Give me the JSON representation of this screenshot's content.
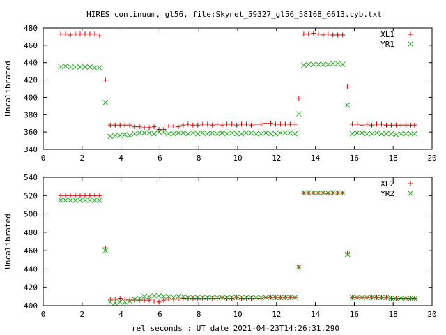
{
  "title": "HIRES continuum, gl56, file:Skynet_59327_gl56_58168_6613.cyb.txt",
  "colors": {
    "series1": "#cc0000",
    "series2": "#22aa22",
    "axes": "#000000"
  },
  "chart_data": [
    {
      "type": "scatter",
      "ylabel": "Uncalibrated",
      "xlabel": "",
      "xlim": [
        0,
        20
      ],
      "ylim": [
        340,
        480
      ],
      "xticks": [
        0,
        2,
        4,
        6,
        8,
        10,
        12,
        14,
        16,
        18,
        20
      ],
      "yticks": [
        340,
        360,
        380,
        400,
        420,
        440,
        460,
        480
      ],
      "grid": false,
      "legend_position": "top-right",
      "series": [
        {
          "name": "XL1",
          "marker": "plus",
          "x": [
            0.9,
            1.15,
            1.4,
            1.65,
            1.9,
            2.15,
            2.4,
            2.65,
            2.9,
            3.2,
            3.45,
            3.7,
            3.95,
            4.2,
            4.45,
            4.7,
            4.95,
            5.2,
            5.45,
            5.7,
            5.95,
            6.2,
            6.45,
            6.7,
            6.95,
            7.2,
            7.45,
            7.7,
            7.95,
            8.2,
            8.45,
            8.7,
            8.95,
            9.2,
            9.45,
            9.7,
            9.95,
            10.2,
            10.45,
            10.7,
            10.95,
            11.2,
            11.45,
            11.7,
            11.95,
            12.2,
            12.45,
            12.7,
            12.95,
            13.15,
            13.4,
            13.65,
            13.9,
            14.15,
            14.4,
            14.65,
            14.9,
            15.15,
            15.4,
            15.65,
            15.9,
            16.15,
            16.4,
            16.65,
            16.9,
            17.15,
            17.4,
            17.65,
            17.9,
            18.15,
            18.4,
            18.65,
            18.9,
            19.1
          ],
          "y": [
            473,
            473,
            472,
            473,
            473,
            473,
            473,
            473,
            471,
            420,
            368,
            368,
            368,
            368,
            368,
            366,
            366,
            365,
            365,
            366,
            363,
            363,
            367,
            367,
            366,
            368,
            369,
            368,
            368,
            369,
            369,
            368,
            369,
            368,
            369,
            369,
            368,
            369,
            369,
            368,
            369,
            369,
            370,
            370,
            369,
            369,
            369,
            369,
            369,
            399,
            473,
            473,
            474,
            473,
            472,
            473,
            472,
            472,
            472,
            412,
            369,
            369,
            368,
            369,
            368,
            369,
            369,
            368,
            368,
            368,
            368,
            368,
            368,
            368
          ]
        },
        {
          "name": "YR1",
          "marker": "cross",
          "x": [
            0.9,
            1.15,
            1.4,
            1.65,
            1.9,
            2.15,
            2.4,
            2.65,
            2.9,
            3.2,
            3.45,
            3.7,
            3.95,
            4.2,
            4.45,
            4.7,
            4.95,
            5.2,
            5.45,
            5.7,
            5.95,
            6.2,
            6.45,
            6.7,
            6.95,
            7.2,
            7.45,
            7.7,
            7.95,
            8.2,
            8.45,
            8.7,
            8.95,
            9.2,
            9.45,
            9.7,
            9.95,
            10.2,
            10.45,
            10.7,
            10.95,
            11.2,
            11.45,
            11.7,
            11.95,
            12.2,
            12.45,
            12.7,
            12.95,
            13.15,
            13.4,
            13.65,
            13.9,
            14.15,
            14.4,
            14.65,
            14.9,
            15.15,
            15.4,
            15.65,
            15.9,
            16.15,
            16.4,
            16.65,
            16.9,
            17.15,
            17.4,
            17.65,
            17.9,
            18.15,
            18.4,
            18.65,
            18.9,
            19.1
          ],
          "y": [
            435,
            436,
            435,
            435,
            435,
            435,
            435,
            434,
            434,
            394,
            355,
            356,
            356,
            357,
            356,
            358,
            359,
            359,
            359,
            358,
            360,
            360,
            358,
            358,
            359,
            359,
            358,
            359,
            358,
            359,
            358,
            359,
            358,
            359,
            358,
            359,
            358,
            358,
            359,
            359,
            358,
            358,
            359,
            358,
            358,
            359,
            359,
            359,
            358,
            381,
            437,
            438,
            438,
            438,
            438,
            438,
            439,
            439,
            438,
            391,
            358,
            359,
            359,
            358,
            358,
            359,
            358,
            358,
            358,
            357,
            358,
            358,
            358,
            358
          ]
        }
      ]
    },
    {
      "type": "scatter",
      "ylabel": "Uncalibrated",
      "xlabel": "rel seconds : UT date 2021-04-23T14:26:31.290",
      "xlim": [
        0,
        20
      ],
      "ylim": [
        400,
        540
      ],
      "xticks": [
        0,
        2,
        4,
        6,
        8,
        10,
        12,
        14,
        16,
        18,
        20
      ],
      "yticks": [
        400,
        420,
        440,
        460,
        480,
        500,
        520,
        540
      ],
      "grid": false,
      "legend_position": "top-right",
      "series": [
        {
          "name": "XL2",
          "marker": "plus",
          "x": [
            0.9,
            1.15,
            1.4,
            1.65,
            1.9,
            2.15,
            2.4,
            2.65,
            2.9,
            3.2,
            3.45,
            3.7,
            3.95,
            4.2,
            4.45,
            4.7,
            4.95,
            5.2,
            5.45,
            5.7,
            5.95,
            6.2,
            6.45,
            6.7,
            6.95,
            7.2,
            7.45,
            7.7,
            7.95,
            8.2,
            8.45,
            8.7,
            8.95,
            9.2,
            9.45,
            9.7,
            9.95,
            10.2,
            10.45,
            10.7,
            10.95,
            11.2,
            11.45,
            11.7,
            11.95,
            12.2,
            12.45,
            12.7,
            12.95,
            13.15,
            13.4,
            13.65,
            13.9,
            14.15,
            14.4,
            14.65,
            14.9,
            15.15,
            15.4,
            15.65,
            15.9,
            16.15,
            16.4,
            16.65,
            16.9,
            17.15,
            17.4,
            17.65,
            17.9,
            18.15,
            18.4,
            18.65,
            18.9,
            19.1
          ],
          "y": [
            520,
            520,
            520,
            520,
            520,
            520,
            520,
            520,
            520,
            463,
            407,
            407,
            408,
            407,
            406,
            406,
            406,
            406,
            406,
            405,
            404,
            406,
            407,
            407,
            407,
            408,
            408,
            408,
            408,
            408,
            408,
            408,
            408,
            409,
            408,
            408,
            409,
            408,
            408,
            408,
            408,
            408,
            409,
            409,
            409,
            409,
            409,
            409,
            409,
            442,
            523,
            523,
            523,
            523,
            523,
            522,
            523,
            523,
            523,
            457,
            409,
            409,
            409,
            409,
            409,
            409,
            409,
            409,
            408,
            408,
            408,
            408,
            408,
            408
          ]
        },
        {
          "name": "YR2",
          "marker": "cross",
          "x": [
            0.9,
            1.15,
            1.4,
            1.65,
            1.9,
            2.15,
            2.4,
            2.65,
            2.9,
            3.2,
            3.45,
            3.7,
            3.95,
            4.2,
            4.45,
            4.7,
            4.95,
            5.2,
            5.45,
            5.7,
            5.95,
            6.2,
            6.45,
            6.7,
            6.95,
            7.2,
            7.45,
            7.7,
            7.95,
            8.2,
            8.45,
            8.7,
            8.95,
            9.2,
            9.45,
            9.7,
            9.95,
            10.2,
            10.45,
            10.7,
            10.95,
            11.2,
            11.45,
            11.7,
            11.95,
            12.2,
            12.45,
            12.7,
            12.95,
            13.15,
            13.4,
            13.65,
            13.9,
            14.15,
            14.4,
            14.65,
            14.9,
            15.15,
            15.4,
            15.65,
            15.9,
            16.15,
            16.4,
            16.65,
            16.9,
            17.15,
            17.4,
            17.65,
            17.9,
            18.15,
            18.4,
            18.65,
            18.9,
            19.1
          ],
          "y": [
            515,
            515,
            515,
            515,
            515,
            515,
            515,
            515,
            515,
            460,
            404,
            403,
            404,
            404,
            405,
            407,
            408,
            410,
            410,
            411,
            411,
            410,
            410,
            409,
            410,
            410,
            409,
            409,
            409,
            409,
            409,
            409,
            409,
            409,
            409,
            409,
            409,
            409,
            409,
            409,
            409,
            409,
            409,
            409,
            409,
            409,
            409,
            409,
            409,
            442,
            523,
            523,
            523,
            523,
            523,
            523,
            523,
            523,
            523,
            456,
            409,
            409,
            409,
            409,
            409,
            409,
            409,
            409,
            408,
            408,
            408,
            408,
            408,
            408
          ]
        }
      ]
    }
  ]
}
